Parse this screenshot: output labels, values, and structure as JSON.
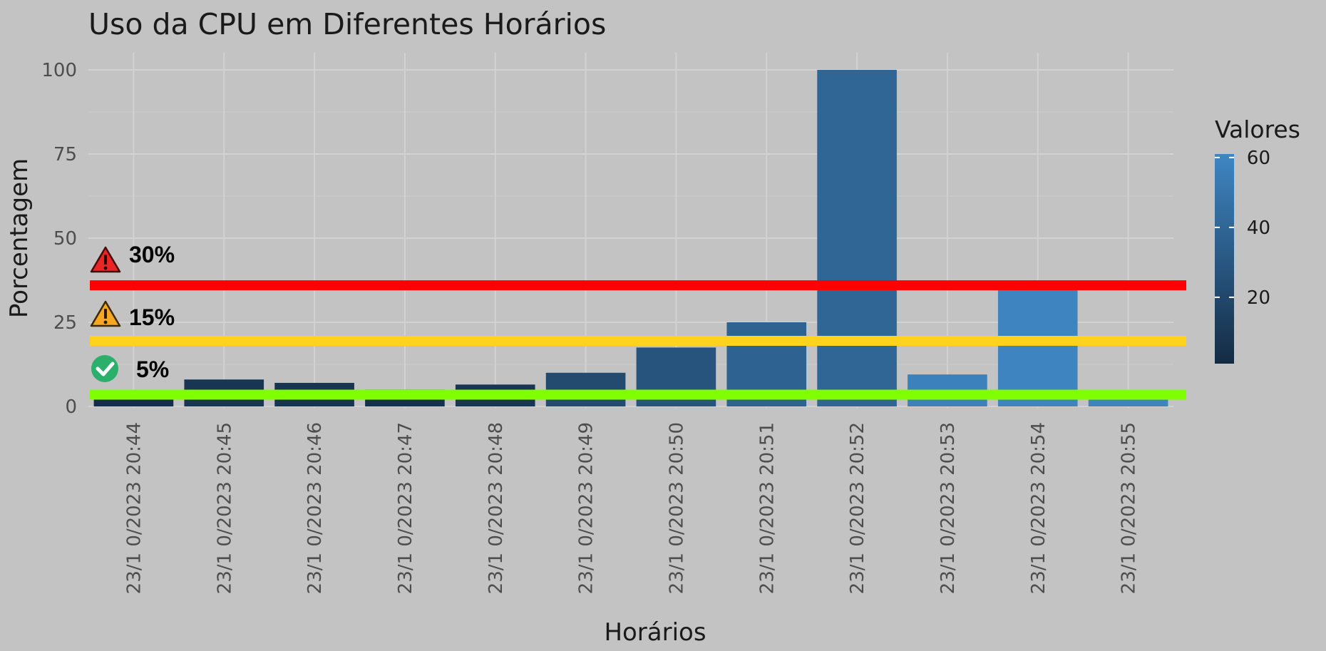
{
  "chart_data": {
    "type": "bar",
    "title": "Uso da CPU em Diferentes Horários",
    "xlabel": "Horários",
    "ylabel": "Porcentagem",
    "ylim": [
      0,
      100
    ],
    "yticks": [
      "0",
      "25",
      "50",
      "75",
      "100"
    ],
    "categories": [
      "23/1 0/2023 20:44",
      "23/1 0/2023 20:45",
      "23/1 0/2023 20:46",
      "23/1 0/2023 20:47",
      "23/1 0/2023 20:48",
      "23/1 0/2023 20:49",
      "23/1 0/2023 20:50",
      "23/1 0/2023 20:51",
      "23/1 0/2023 20:52",
      "23/1 0/2023 20:53",
      "23/1 0/2023 20:54",
      "23/1 0/2023 20:55"
    ],
    "values": [
      3,
      8,
      7,
      5,
      6.5,
      10,
      17.5,
      25,
      100,
      9.5,
      37,
      2
    ],
    "color_values": [
      3,
      8,
      7,
      5,
      8,
      22,
      28,
      38,
      40,
      58,
      60,
      60
    ],
    "grid": true,
    "legend": {
      "title": "Valores",
      "position": "right",
      "ticks": [
        "20",
        "40",
        "60"
      ],
      "range": [
        1,
        61
      ],
      "colors": {
        "low": "#132b43",
        "high": "#3f86c2"
      }
    },
    "thresholds": [
      {
        "label": "30%",
        "y": 36,
        "color": "#ff0000",
        "icon": "warning-red-icon"
      },
      {
        "label": "15%",
        "y": 19.5,
        "color": "#ffd21e",
        "icon": "warning-orange-icon"
      },
      {
        "label": "5%",
        "y": 3.5,
        "color": "#7fff00",
        "icon": "check-circle-icon"
      }
    ]
  }
}
